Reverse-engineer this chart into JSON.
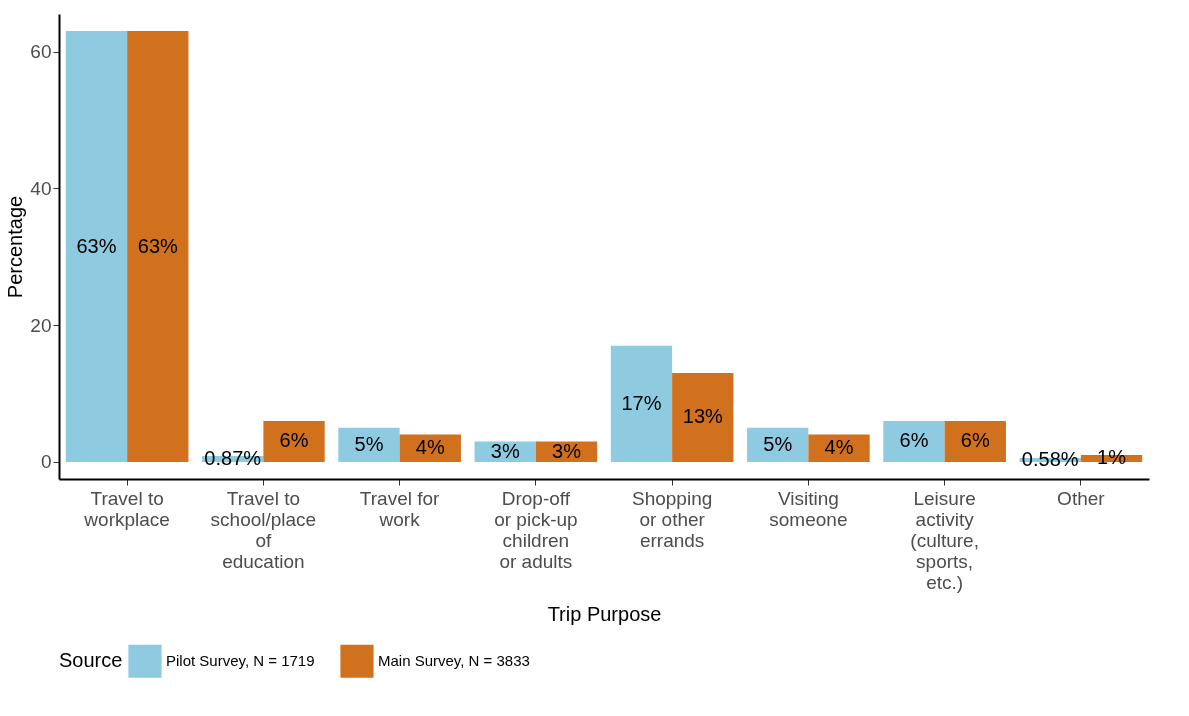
{
  "chart_data": {
    "type": "bar",
    "xlabel": "Trip Purpose",
    "ylabel": "Percentage",
    "legend_title": "Source",
    "legend": "bottom",
    "grid": false,
    "categories": [
      "Travel to workplace",
      "Travel to school/place of education",
      "Travel for work",
      "Drop-off or pick-up children or adults",
      "Shopping or other errands",
      "Visiting someone",
      "Leisure activity (culture, sports, etc.)",
      "Other"
    ],
    "series": [
      {
        "name": "Pilot Survey, N = 1719",
        "color": "#8ecae0",
        "values": [
          63,
          0.87,
          5,
          3,
          17,
          5,
          6,
          0.58
        ],
        "value_labels": [
          "63%",
          "0.87%",
          "5%",
          "3%",
          "17%",
          "5%",
          "6%",
          "0.58%"
        ]
      },
      {
        "name": "Main Survey, N = 3833",
        "color": "#d2711d",
        "values": [
          63,
          6,
          4,
          3,
          13,
          4,
          6,
          1
        ],
        "value_labels": [
          "63%",
          "6%",
          "4%",
          "3%",
          "13%",
          "4%",
          "6%",
          "1%"
        ]
      }
    ],
    "ylim": [
      -2.5,
      65.5
    ],
    "yticks": [
      0,
      20,
      40,
      60
    ]
  }
}
